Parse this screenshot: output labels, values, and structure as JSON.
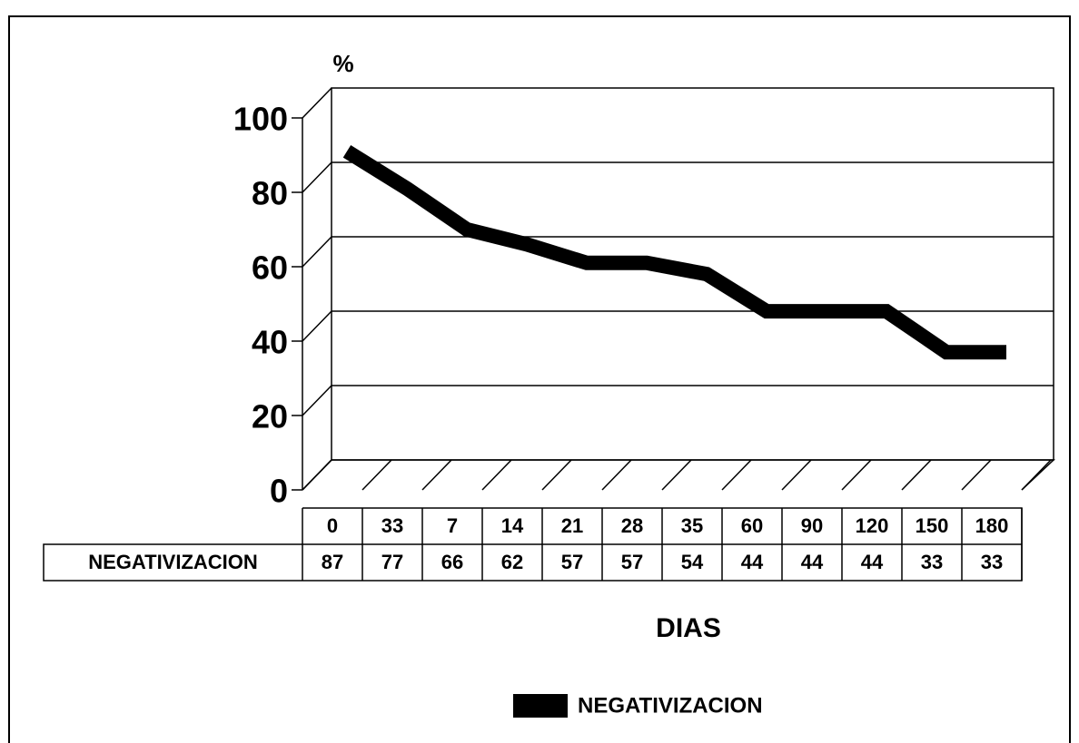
{
  "chart_data": {
    "type": "line",
    "ylabel": "%",
    "xlabel": "DIAS",
    "categories": [
      "0",
      "33",
      "7",
      "14",
      "21",
      "28",
      "35",
      "60",
      "90",
      "120",
      "150",
      "180"
    ],
    "series": [
      {
        "name": "NEGATIVIZACION",
        "color": "#000000",
        "values": [
          87,
          77,
          66,
          62,
          57,
          57,
          54,
          44,
          44,
          44,
          33,
          33
        ]
      }
    ],
    "ylim": [
      0,
      100
    ],
    "yticks": [
      0,
      20,
      40,
      60,
      80,
      100
    ],
    "grid": true,
    "legend": "bottom"
  }
}
